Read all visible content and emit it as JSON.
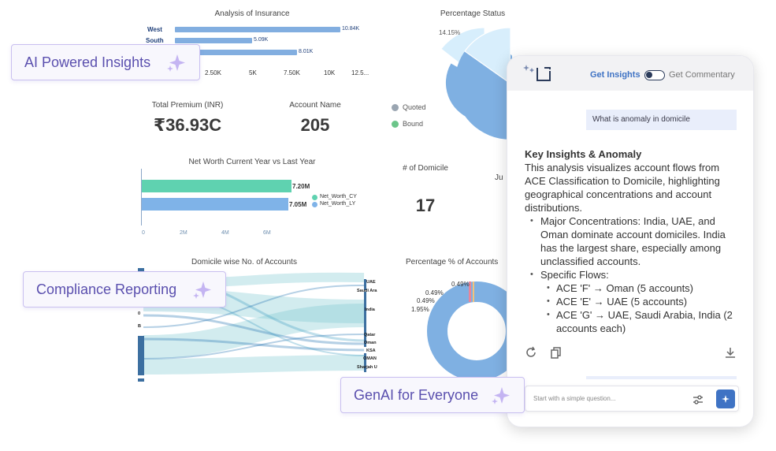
{
  "insurance": {
    "title": "Analysis of Insurance",
    "bars": [
      {
        "label": "West",
        "value_label": "10.84K",
        "value": 10.84
      },
      {
        "label": "South",
        "value_label": "5.09K",
        "value": 5.09
      },
      {
        "label": "",
        "value_label": "8.01K",
        "value": 8.01
      }
    ],
    "ticks": [
      "2.50K",
      "5K",
      "7.50K",
      "10K",
      "12.5..."
    ]
  },
  "percentage_status": {
    "title": "Percentage Status",
    "slice_label": "14.15%",
    "legend": [
      {
        "label": "Quoted",
        "color": "#9aa5b1"
      },
      {
        "label": "Bound",
        "color": "#6cc58a"
      }
    ]
  },
  "kpis": {
    "total_premium_label": "Total Premium (INR)",
    "total_premium_value": "₹36.93C",
    "account_name_label": "Account Name",
    "account_name_value": "205",
    "domicile_label": "# of Domicile",
    "domicile_value": "17",
    "partial_label": "Ju"
  },
  "net_worth": {
    "title": "Net Worth Current Year vs Last Year",
    "bars": [
      {
        "name": "Net_Worth_CY",
        "value_label": "7.20M",
        "value": 7.2,
        "color": "#5fd2b0"
      },
      {
        "name": "Net_Worth_LY",
        "value_label": "7.05M",
        "value": 7.05,
        "color": "#7fb3e8"
      }
    ],
    "ticks": [
      "0",
      "2M",
      "4M",
      "6M"
    ]
  },
  "sankey": {
    "title": "Domicile wise No. of Accounts",
    "left_labels": [
      "0",
      "B"
    ],
    "right_labels": [
      "UAE",
      "Saudi Ara",
      "India",
      "Qatar",
      "Oman",
      "KSA",
      "OMAN",
      "Sharjah U"
    ]
  },
  "donut": {
    "title": "Percentage % of Accounts",
    "labels": [
      "0.49%",
      "0.49%",
      "0.49%",
      "1.95%"
    ]
  },
  "pills": {
    "ai_insights": "AI Powered Insights",
    "compliance": "Compliance Reporting",
    "genai": "GenAI for Everyone"
  },
  "panel": {
    "tab_insights": "Get Insights",
    "tab_commentary": "Get Commentary",
    "question": "What is anomaly in domicile",
    "answer_heading": "Key Insights & Anomaly",
    "answer_intro": "This analysis visualizes account flows from ACE Classification to Domicile, highlighting geographical concentrations and account distributions.",
    "bullet_major": "Major Concentrations: India, UAE, and Oman dominate account domiciles. India has the largest share, especially among unclassified accounts.",
    "bullet_flows": "Specific Flows:",
    "flows": [
      "ACE 'F' → Oman (5 accounts)",
      "ACE 'E' → UAE (5 accounts)",
      "ACE 'G' → UAE, Saudi Arabia, India (2 accounts each)"
    ],
    "input_placeholder": "Start with a simple question..."
  },
  "colors": {
    "accent_blue": "#3f73c4",
    "pill_text": "#5a4fae",
    "bar_blue": "#82aee0"
  }
}
